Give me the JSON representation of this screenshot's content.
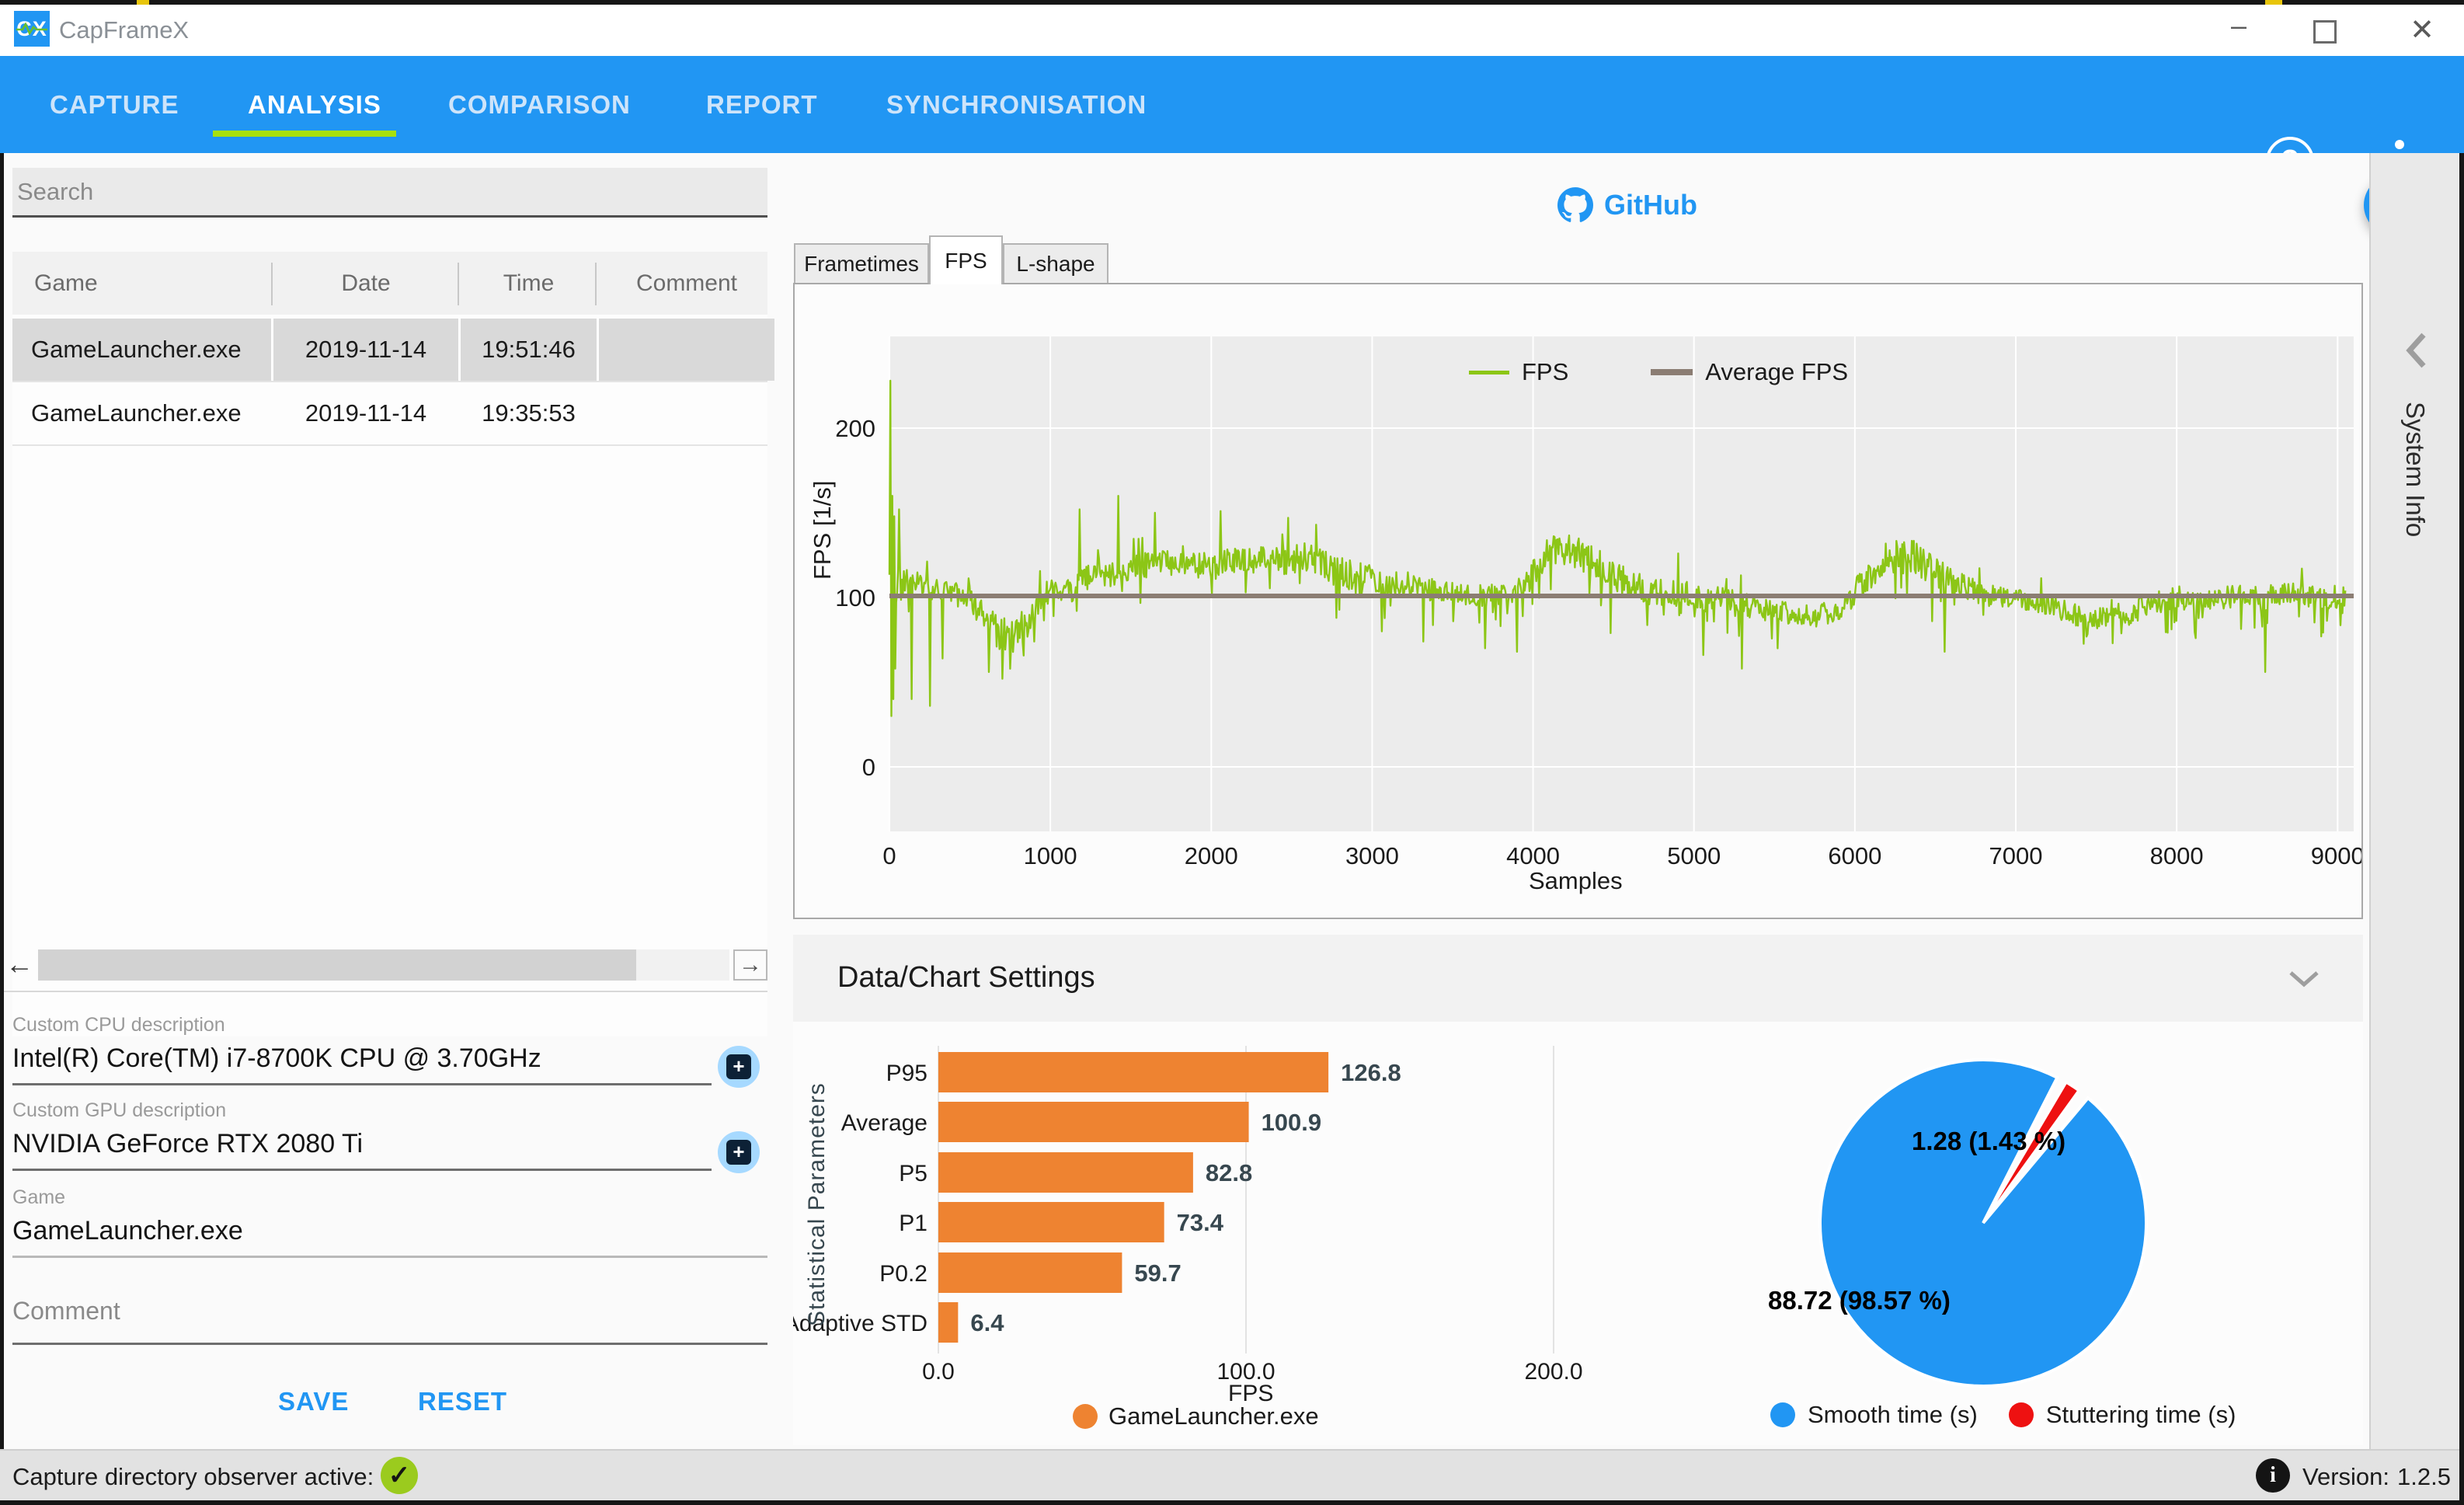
{
  "window": {
    "title": "CapFrameX",
    "controls": {
      "minimize": "–",
      "maximize": "▢",
      "close": "✕"
    }
  },
  "nav": {
    "items": [
      {
        "label": "CAPTURE",
        "active": false
      },
      {
        "label": "ANALYSIS",
        "active": true
      },
      {
        "label": "COMPARISON",
        "active": false
      },
      {
        "label": "REPORT",
        "active": false
      },
      {
        "label": "SYNCHRONISATION",
        "active": false
      }
    ],
    "accent_underline_color": "#a8e10c",
    "bar_color": "#2196f3"
  },
  "left_panel": {
    "search_placeholder": "Search",
    "table": {
      "columns": [
        "Game",
        "Date",
        "Time",
        "Comment"
      ],
      "rows": [
        [
          "GameLauncher.exe",
          "2019-11-14",
          "19:51:46",
          ""
        ],
        [
          "GameLauncher.exe",
          "2019-11-14",
          "19:35:53",
          ""
        ]
      ],
      "selected_row": 0
    },
    "fields": [
      {
        "label": "Custom CPU description",
        "value": "Intel(R) Core(TM) i7-8700K CPU @ 3.70GHz"
      },
      {
        "label": "Custom GPU description",
        "value": "NVIDIA GeForce RTX 2080 Ti"
      },
      {
        "label": "Game",
        "value": "GameLauncher.exe"
      }
    ],
    "comment_placeholder": "Comment",
    "save_label": "SAVE",
    "reset_label": "RESET"
  },
  "main": {
    "github_label": "GitHub",
    "tabs": [
      {
        "label": "Frametimes",
        "active": false
      },
      {
        "label": "FPS",
        "active": true
      },
      {
        "label": "L-shape",
        "active": false
      }
    ],
    "settings_header": "Data/Chart Settings",
    "sidebar_label": "System Info"
  },
  "status_bar": {
    "left_text": "Capture directory observer active:",
    "version_label": "Version:",
    "version_value": "1.2.5"
  },
  "chart_data": [
    {
      "type": "line",
      "title": "",
      "xlabel": "Samples",
      "ylabel": "FPS [1/s]",
      "xlim": [
        0,
        9100
      ],
      "ylim": [
        -38,
        254
      ],
      "xticks": [
        0,
        1000,
        2000,
        3000,
        4000,
        5000,
        6000,
        7000,
        8000,
        9000
      ],
      "yticks": [
        0,
        100,
        200
      ],
      "grid": true,
      "legend_position": "top-right-inside",
      "plot_bg": "#ececec",
      "series": [
        {
          "name": "FPS",
          "color": "#8cc616",
          "style": "noisy-band",
          "band_anchors": [
            [
              0,
              88,
              132
            ],
            [
              80,
              95,
              122
            ],
            [
              200,
              98,
              116
            ],
            [
              350,
              94,
              113
            ],
            [
              500,
              90,
              110
            ],
            [
              620,
              68,
              97
            ],
            [
              750,
              62,
              92
            ],
            [
              860,
              72,
              99
            ],
            [
              950,
              93,
              112
            ],
            [
              1100,
              97,
              114
            ],
            [
              1250,
              103,
              122
            ],
            [
              1400,
              104,
              123
            ],
            [
              1550,
              108,
              128
            ],
            [
              1700,
              111,
              131
            ],
            [
              1850,
              109,
              129
            ],
            [
              2000,
              108,
              129
            ],
            [
              2150,
              110,
              132
            ],
            [
              2300,
              111,
              134
            ],
            [
              2450,
              110,
              133
            ],
            [
              2600,
              111,
              136
            ],
            [
              2750,
              104,
              128
            ],
            [
              2900,
              99,
              124
            ],
            [
              3050,
              99,
              121
            ],
            [
              3200,
              98,
              118
            ],
            [
              3350,
              96,
              114
            ],
            [
              3500,
              94,
              111
            ],
            [
              3650,
              93,
              110
            ],
            [
              3800,
              92,
              110
            ],
            [
              3950,
              97,
              118
            ],
            [
              4100,
              116,
              141
            ],
            [
              4250,
              115,
              140
            ],
            [
              4400,
              107,
              132
            ],
            [
              4550,
              98,
              122
            ],
            [
              4700,
              92,
              115
            ],
            [
              4850,
              93,
              116
            ],
            [
              5000,
              90,
              111
            ],
            [
              5150,
              88,
              109
            ],
            [
              5300,
              86,
              106
            ],
            [
              5450,
              84,
              103
            ],
            [
              5600,
              81,
              99
            ],
            [
              5750,
              80,
              97
            ],
            [
              5900,
              84,
              102
            ],
            [
              6050,
              97,
              120
            ],
            [
              6200,
              110,
              137
            ],
            [
              6350,
              111,
              139
            ],
            [
              6500,
              103,
              128
            ],
            [
              6650,
              96,
              118
            ],
            [
              6800,
              93,
              111
            ],
            [
              6950,
              91,
              108
            ],
            [
              7100,
              89,
              106
            ],
            [
              7250,
              85,
              102
            ],
            [
              7400,
              80,
              99
            ],
            [
              7550,
              78,
              97
            ],
            [
              7700,
              81,
              100
            ],
            [
              7850,
              88,
              105
            ],
            [
              8000,
              91,
              109
            ],
            [
              8150,
              89,
              107
            ],
            [
              8300,
              91,
              109
            ],
            [
              8450,
              92,
              110
            ],
            [
              8600,
              94,
              111
            ],
            [
              8750,
              93,
              111
            ],
            [
              8900,
              91,
              110
            ],
            [
              9050,
              92,
              109
            ]
          ],
          "spikes": [
            [
              6,
              228
            ],
            [
              12,
              30
            ],
            [
              18,
              160
            ],
            [
              24,
              40
            ],
            [
              30,
              148
            ],
            [
              38,
              58
            ],
            [
              60,
              152
            ],
            [
              140,
              40
            ],
            [
              250,
              36
            ],
            [
              330,
              64
            ],
            [
              620,
              56
            ],
            [
              700,
              52
            ],
            [
              900,
              74
            ],
            [
              1180,
              152
            ],
            [
              1420,
              160
            ],
            [
              1650,
              150
            ],
            [
              2060,
              151
            ],
            [
              2480,
              147
            ],
            [
              2650,
              143
            ],
            [
              2780,
              88
            ],
            [
              3060,
              80
            ],
            [
              3320,
              74
            ],
            [
              3700,
              70
            ],
            [
              3900,
              68
            ],
            [
              4480,
              79
            ],
            [
              4900,
              126
            ],
            [
              5060,
              66
            ],
            [
              5300,
              58
            ],
            [
              5520,
              70
            ],
            [
              6480,
              86
            ],
            [
              6560,
              68
            ],
            [
              7600,
              73
            ],
            [
              8120,
              76
            ],
            [
              8550,
              56
            ],
            [
              8900,
              77
            ]
          ]
        },
        {
          "name": "Average FPS",
          "color": "#8b7d73",
          "style": "hline",
          "value": 100.9
        }
      ]
    },
    {
      "type": "bar",
      "orientation": "horizontal",
      "categories": [
        "P95",
        "Average",
        "P5",
        "P1",
        "P0.2",
        "Adaptive STD"
      ],
      "values": [
        126.8,
        100.9,
        82.8,
        73.4,
        59.7,
        6.4
      ],
      "value_labels": [
        "126.8",
        "100.9",
        "82.8",
        "73.4",
        "59.7",
        "6.4"
      ],
      "bar_color": "#ee8331",
      "value_label_color": "#37474f",
      "xlabel": "FPS",
      "ylabel": "Statistical Parameters",
      "xticks": [
        0,
        100,
        200
      ],
      "xtick_labels": [
        "0.0",
        "100.0",
        "200.0"
      ],
      "xlim": [
        0,
        232
      ],
      "grid": true,
      "legend": [
        {
          "label": "GameLauncher.exe",
          "color": "#ee8331"
        }
      ]
    },
    {
      "type": "pie",
      "labels": [
        "Smooth time (s)",
        "Stuttering time (s)"
      ],
      "values": [
        88.72,
        1.28
      ],
      "percents": [
        98.57,
        1.43
      ],
      "display_labels": [
        "88.72 (98.57 %)",
        "1.28 (1.43 %)"
      ],
      "colors": [
        "#2196f3",
        "#ee1111"
      ],
      "legend_position": "bottom"
    }
  ]
}
